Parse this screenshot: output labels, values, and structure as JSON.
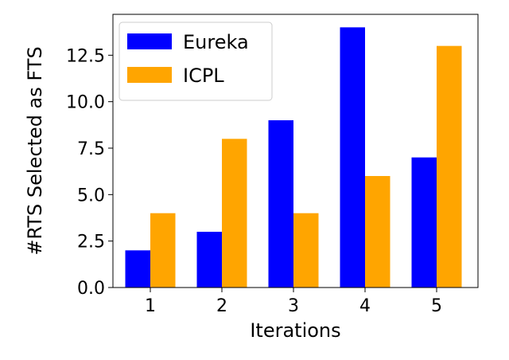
{
  "chart_data": {
    "type": "bar",
    "title": "",
    "xlabel": "Iterations",
    "ylabel": "#RTS Selected as FTS",
    "categories": [
      "1",
      "2",
      "3",
      "4",
      "5"
    ],
    "series": [
      {
        "name": "Eureka",
        "color": "#0000ff",
        "values": [
          2,
          3,
          9,
          14,
          7
        ]
      },
      {
        "name": "ICPL",
        "color": "#ffa500",
        "values": [
          4,
          8,
          4,
          6,
          13
        ]
      }
    ],
    "ylim": [
      0,
      14.7
    ],
    "yticks": [
      "0.0",
      "2.5",
      "5.0",
      "7.5",
      "10.0",
      "12.5"
    ],
    "grid": false,
    "legend_position": "top-left"
  }
}
